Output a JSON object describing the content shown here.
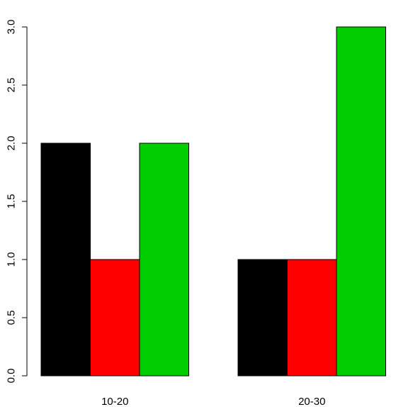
{
  "chart_data": {
    "type": "bar",
    "categories": [
      "10-20",
      "20-30"
    ],
    "series": [
      {
        "values": [
          2,
          1
        ],
        "color": "#000000"
      },
      {
        "values": [
          1,
          1
        ],
        "color": "#ff0000"
      },
      {
        "values": [
          2,
          3
        ],
        "color": "#00cd00"
      }
    ],
    "ylim": [
      0,
      3
    ],
    "yticks": [
      "0.0",
      "0.5",
      "1.0",
      "1.5",
      "2.0",
      "2.5",
      "3.0"
    ],
    "title": "",
    "xlabel": "",
    "ylabel": "",
    "grid": false,
    "legend": false
  }
}
